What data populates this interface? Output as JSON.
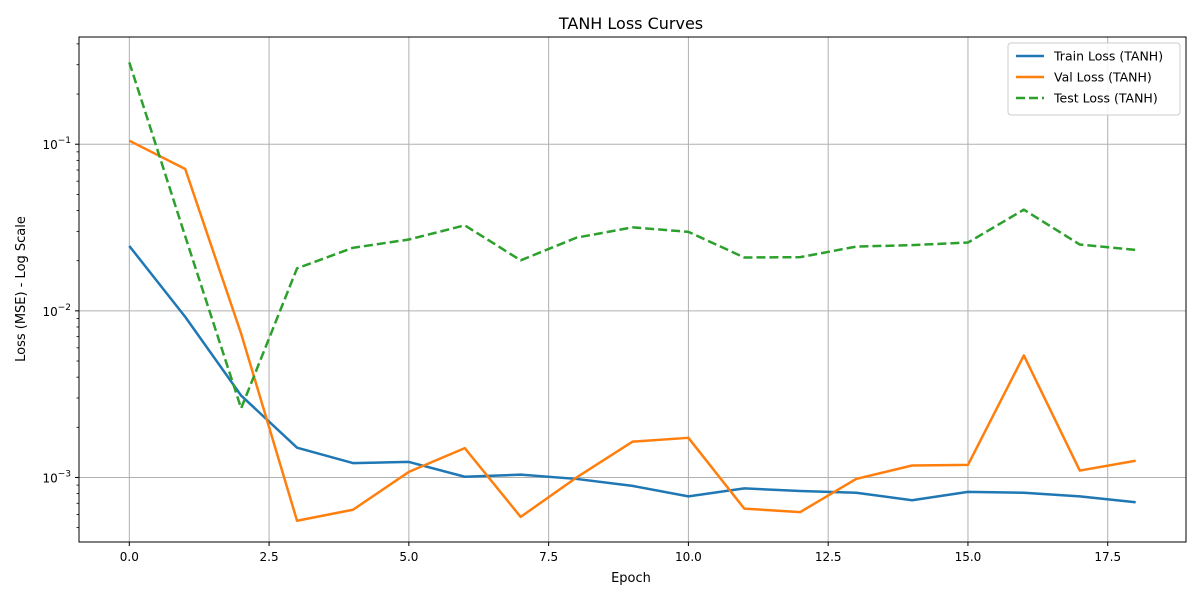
{
  "chart_data": {
    "type": "line",
    "title": "TANH Loss Curves",
    "xlabel": "Epoch",
    "ylabel": "Loss (MSE) - Log Scale",
    "y_scale": "log",
    "xlim": [
      -0.9,
      18.9
    ],
    "ylim": [
      0.00041,
      0.44
    ],
    "x_ticks": [
      0.0,
      2.5,
      5.0,
      7.5,
      10.0,
      12.5,
      15.0,
      17.5
    ],
    "x_tick_labels": [
      "0.0",
      "2.5",
      "5.0",
      "7.5",
      "10.0",
      "12.5",
      "15.0",
      "17.5"
    ],
    "y_major_ticks": [
      0.001,
      0.01,
      0.1
    ],
    "y_tick_labels": [
      {
        "base": "10",
        "exp": "−3"
      },
      {
        "base": "10",
        "exp": "−2"
      },
      {
        "base": "10",
        "exp": "−1"
      }
    ],
    "grid": true,
    "legend_position": "top-right",
    "x": [
      0,
      1,
      2,
      3,
      4,
      5,
      6,
      7,
      8,
      9,
      10,
      11,
      12,
      13,
      14,
      15,
      16,
      17,
      18
    ],
    "series": [
      {
        "name": "Train Loss (TANH)",
        "color": "#1f77b4",
        "dash": "solid",
        "values": [
          0.0245,
          0.0092,
          0.0031,
          0.00151,
          0.00122,
          0.00124,
          0.00101,
          0.00104,
          0.00098,
          0.00089,
          0.00077,
          0.00086,
          0.00083,
          0.00081,
          0.00073,
          0.00082,
          0.00081,
          0.00077,
          0.00071
        ]
      },
      {
        "name": "Val Loss (TANH)",
        "color": "#ff7f0e",
        "dash": "solid",
        "values": [
          0.105,
          0.071,
          0.0073,
          0.00055,
          0.00064,
          0.00108,
          0.0015,
          0.00058,
          0.001,
          0.00164,
          0.00173,
          0.00065,
          0.00062,
          0.00098,
          0.00118,
          0.00119,
          0.0054,
          0.0011,
          0.00126
        ]
      },
      {
        "name": "Test Loss (TANH)",
        "color": "#2ca02c",
        "dash": "dashed",
        "values": [
          0.31,
          0.028,
          0.0026,
          0.018,
          0.0239,
          0.0268,
          0.0326,
          0.0201,
          0.0275,
          0.0317,
          0.0298,
          0.0209,
          0.021,
          0.0243,
          0.0248,
          0.0257,
          0.0405,
          0.025,
          0.0232
        ]
      }
    ]
  }
}
